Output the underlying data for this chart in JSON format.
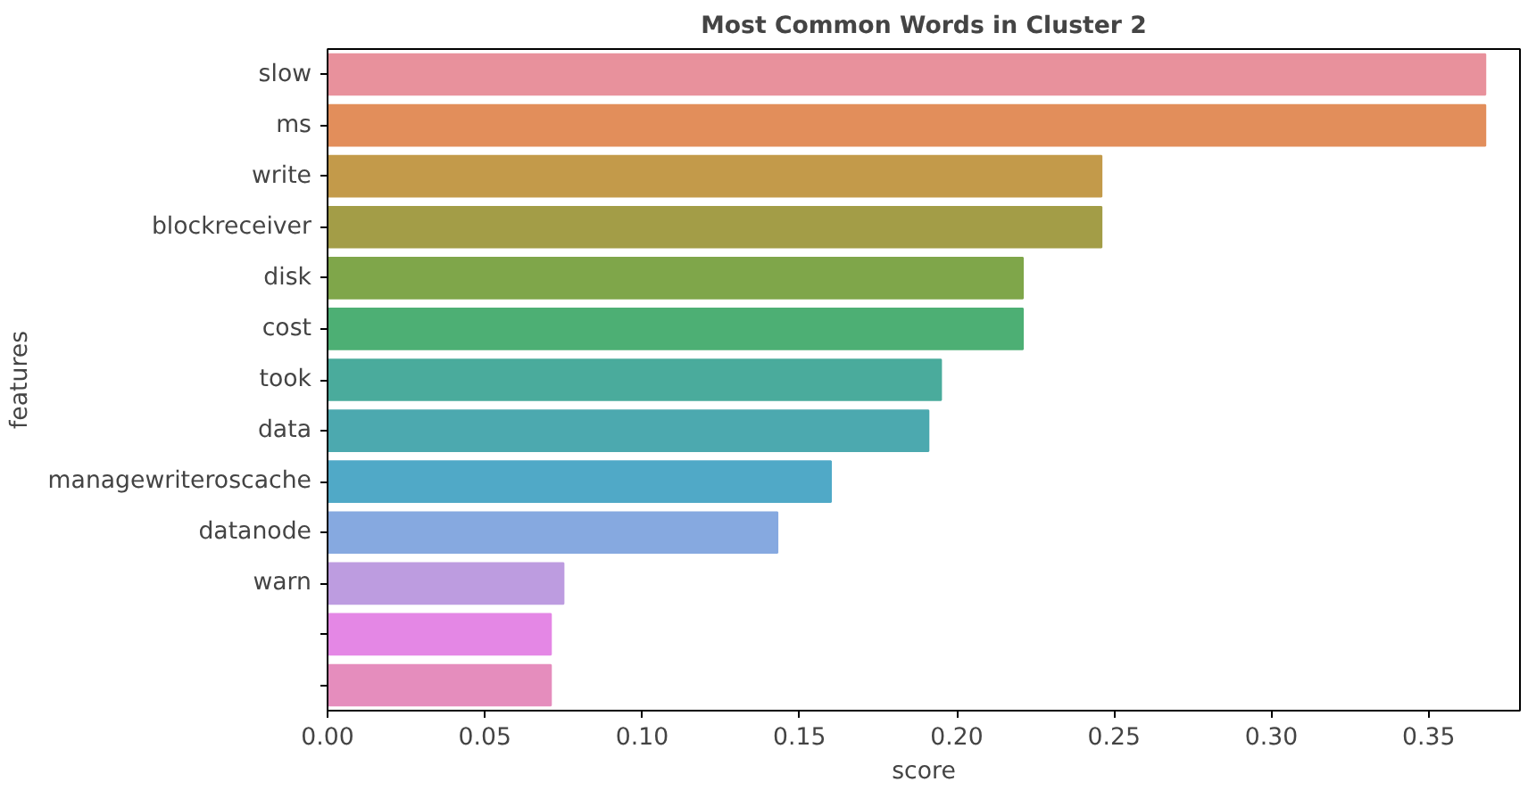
{
  "chart_data": {
    "type": "bar",
    "orientation": "horizontal",
    "title": "Most Common Words in Cluster 2",
    "xlabel": "score",
    "ylabel": "features",
    "categories": [
      "slow",
      "ms",
      "write",
      "blockreceiver",
      "disk",
      "cost",
      "took",
      "data",
      "managewriteroscache",
      "datanode",
      "warn",
      null,
      null
    ],
    "values": [
      0.368,
      0.368,
      0.246,
      0.246,
      0.221,
      0.221,
      0.195,
      0.191,
      0.16,
      0.143,
      0.075,
      0.071,
      0.071
    ],
    "colors": [
      "#e8919c",
      "#e28e5b",
      "#c39a4a",
      "#a39d47",
      "#7fa64a",
      "#4daf74",
      "#4aab9c",
      "#4ca9af",
      "#50a9c7",
      "#86a9e0",
      "#bd9ce0",
      "#e487e5",
      "#e58dbd"
    ],
    "xlim": [
      0,
      0.379
    ],
    "xticks": [
      {
        "value": 0,
        "label": "0.00"
      },
      {
        "value": 0.05,
        "label": "0.05"
      },
      {
        "value": 0.1,
        "label": "0.10"
      },
      {
        "value": 0.15,
        "label": "0.15"
      },
      {
        "value": 0.2,
        "label": "0.20"
      },
      {
        "value": 0.25,
        "label": "0.25"
      },
      {
        "value": 0.3,
        "label": "0.30"
      },
      {
        "value": 0.35,
        "label": "0.35"
      }
    ],
    "grid": false
  }
}
